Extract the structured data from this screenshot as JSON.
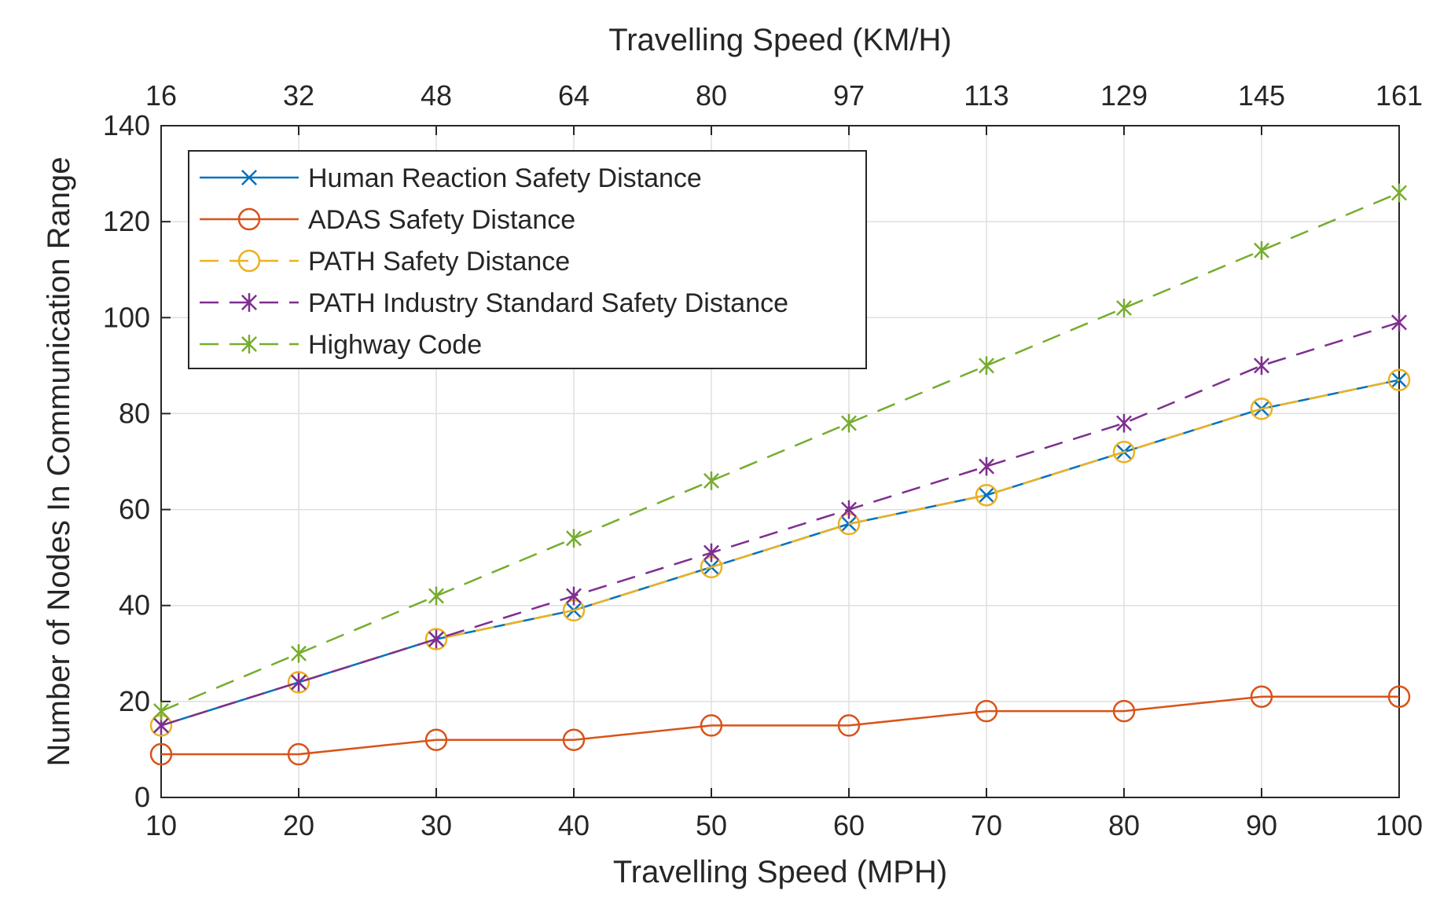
{
  "chart_data": {
    "type": "line",
    "xlabel": "Travelling Speed (MPH)",
    "x2label": "Travelling Speed (KM/H)",
    "ylabel": "Number of Nodes In Communication Range",
    "xlim": [
      10,
      100
    ],
    "ylim": [
      0,
      140
    ],
    "x": [
      10,
      20,
      30,
      40,
      50,
      60,
      70,
      80,
      90,
      100
    ],
    "xticks": [
      "10",
      "20",
      "30",
      "40",
      "50",
      "60",
      "70",
      "80",
      "90",
      "100"
    ],
    "x2ticks": [
      "16",
      "32",
      "48",
      "64",
      "80",
      "97",
      "113",
      "129",
      "145",
      "161"
    ],
    "yticks": [
      "0",
      "20",
      "40",
      "60",
      "80",
      "100",
      "120",
      "140"
    ],
    "ytick_values": [
      0,
      20,
      40,
      60,
      80,
      100,
      120,
      140
    ],
    "grid": true,
    "legend_position": "top-left",
    "series": [
      {
        "name": "Human Reaction Safety Distance",
        "color": "#0072BD",
        "dash": "solid",
        "marker": "x",
        "values": [
          15,
          24,
          33,
          39,
          48,
          57,
          63,
          72,
          81,
          87
        ]
      },
      {
        "name": "ADAS Safety Distance",
        "color": "#D95319",
        "dash": "solid",
        "marker": "circle",
        "values": [
          9,
          9,
          12,
          12,
          15,
          15,
          18,
          18,
          21,
          21
        ]
      },
      {
        "name": "PATH Safety Distance",
        "color": "#EDB120",
        "dash": "dashed",
        "marker": "circle",
        "values": [
          15,
          24,
          33,
          39,
          48,
          57,
          63,
          72,
          81,
          87
        ]
      },
      {
        "name": "PATH Industry Standard Safety Distance",
        "color": "#7E2F8E",
        "dash": "dashed",
        "marker": "star",
        "values": [
          15,
          24,
          33,
          42,
          51,
          60,
          69,
          78,
          90,
          99
        ]
      },
      {
        "name": "Highway Code",
        "color": "#77AC30",
        "dash": "dashed",
        "marker": "star",
        "values": [
          18,
          30,
          42,
          54,
          66,
          78,
          90,
          102,
          114,
          126
        ]
      }
    ]
  }
}
